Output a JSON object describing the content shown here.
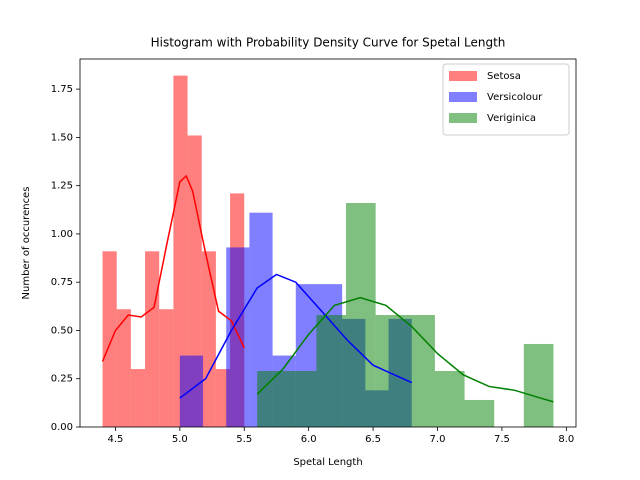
{
  "chart_data": {
    "type": "histogram",
    "title": "Histogram with Probability Density Curve for Spetal Length",
    "x_label": "Spetal Length",
    "y_label": "Number of occurences",
    "xlim": [
      4.225,
      8.075
    ],
    "ylim": [
      0,
      1.906
    ],
    "xticks": [
      {
        "value": 4.5,
        "label": "4.5"
      },
      {
        "value": 5.0,
        "label": "5.0"
      },
      {
        "value": 5.5,
        "label": "5.5"
      },
      {
        "value": 6.0,
        "label": "6.0"
      },
      {
        "value": 6.5,
        "label": "6.5"
      },
      {
        "value": 7.0,
        "label": "7.0"
      },
      {
        "value": 7.5,
        "label": "7.5"
      },
      {
        "value": 8.0,
        "label": "8.0"
      }
    ],
    "yticks": [
      {
        "value": 0,
        "label": "0.00"
      },
      {
        "value": 0.25,
        "label": "0.25"
      },
      {
        "value": 0.5,
        "label": "0.50"
      },
      {
        "value": 0.75,
        "label": "0.75"
      },
      {
        "value": 1.0,
        "label": "1.00"
      },
      {
        "value": 1.25,
        "label": "1.25"
      },
      {
        "value": 1.5,
        "label": "1.50"
      },
      {
        "value": 1.75,
        "label": "1.75"
      }
    ],
    "legend_position": "upper right",
    "bar_alpha": 0.5,
    "series": [
      {
        "name": "Setosa",
        "color": "#ff0000",
        "bins": [
          4.4,
          4.51,
          4.62,
          4.73,
          4.84,
          4.95,
          5.06,
          5.17,
          5.28,
          5.39,
          5.5
        ],
        "values": [
          0.91,
          0.61,
          0.3,
          0.91,
          0.61,
          1.82,
          1.51,
          0.91,
          0.3,
          1.21
        ],
        "density_x": [
          4.4,
          4.5,
          4.6,
          4.7,
          4.8,
          4.9,
          5.0,
          5.05,
          5.1,
          5.2,
          5.3,
          5.4,
          5.5
        ],
        "density_y": [
          0.34,
          0.5,
          0.58,
          0.57,
          0.62,
          0.95,
          1.27,
          1.3,
          1.22,
          0.9,
          0.6,
          0.55,
          0.41
        ]
      },
      {
        "name": "Versicolour",
        "color": "#0000ff",
        "bins": [
          5.0,
          5.18,
          5.36,
          5.54,
          5.72,
          5.9,
          6.08,
          6.26,
          6.44,
          6.62,
          6.8
        ],
        "values": [
          0.37,
          0,
          0.93,
          1.11,
          0.37,
          0.74,
          0.74,
          0.56,
          0.19,
          0.56
        ],
        "density_x": [
          5.0,
          5.2,
          5.4,
          5.6,
          5.75,
          5.9,
          6.1,
          6.3,
          6.5,
          6.8
        ],
        "density_y": [
          0.15,
          0.25,
          0.5,
          0.72,
          0.79,
          0.75,
          0.6,
          0.45,
          0.32,
          0.23
        ]
      },
      {
        "name": "Veriginica",
        "color": "#008000",
        "bins": [
          5.6,
          5.83,
          6.06,
          6.29,
          6.52,
          6.75,
          6.98,
          7.21,
          7.44,
          7.67,
          7.9
        ],
        "values": [
          0.29,
          0.29,
          0.58,
          1.16,
          0.58,
          0.58,
          0.29,
          0.14,
          0,
          0.43
        ],
        "density_x": [
          5.6,
          5.8,
          6.0,
          6.2,
          6.4,
          6.6,
          6.8,
          7.0,
          7.2,
          7.4,
          7.6,
          7.8,
          7.9
        ],
        "density_y": [
          0.17,
          0.3,
          0.48,
          0.63,
          0.67,
          0.63,
          0.52,
          0.38,
          0.27,
          0.21,
          0.19,
          0.15,
          0.13
        ]
      }
    ]
  }
}
